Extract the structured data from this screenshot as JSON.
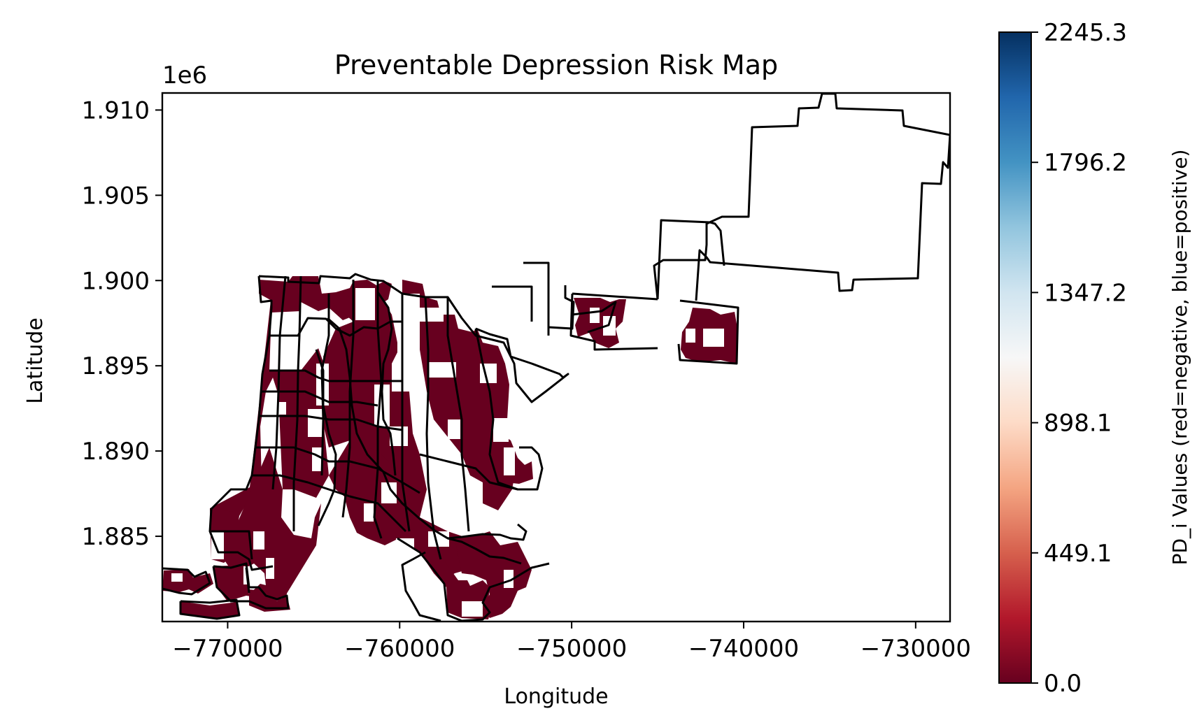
{
  "map": {
    "title": "Preventable Depression Risk Map",
    "xlabel": "Longitude",
    "ylabel": "Latitude",
    "y_offset_label": "1e6",
    "x_ticks": [
      {
        "value": -770000,
        "label": "−770000"
      },
      {
        "value": -760000,
        "label": "−760000"
      },
      {
        "value": -750000,
        "label": "−750000"
      },
      {
        "value": -740000,
        "label": "−740000"
      },
      {
        "value": -730000,
        "label": "−730000"
      }
    ],
    "y_ticks": [
      {
        "value": 1910000,
        "label": "1.910"
      },
      {
        "value": 1905000,
        "label": "1.905"
      },
      {
        "value": 1900000,
        "label": "1.900"
      },
      {
        "value": 1895000,
        "label": "1.895"
      },
      {
        "value": 1890000,
        "label": "1.890"
      },
      {
        "value": 1885000,
        "label": "1.885"
      }
    ]
  },
  "colorbar": {
    "label": "PD_i Values (red=negative, blue=positive)",
    "colormap": "RdBu",
    "range": [
      0.0,
      2245.3
    ],
    "ticks": [
      {
        "value": 0.0,
        "label": "0.0"
      },
      {
        "value": 449.1,
        "label": "449.1"
      },
      {
        "value": 898.1,
        "label": "898.1"
      },
      {
        "value": 1347.2,
        "label": "1347.2"
      },
      {
        "value": 1796.2,
        "label": "1796.2"
      },
      {
        "value": 2245.3,
        "label": "2245.3"
      }
    ],
    "stops": [
      "#67001f",
      "#b2182b",
      "#d6604d",
      "#f4a582",
      "#fddbc7",
      "#f7f7f7",
      "#d1e5f0",
      "#92c5de",
      "#4393c3",
      "#2166ac",
      "#053061"
    ]
  },
  "colors": {
    "fill_dominant": "#67001f",
    "boundary": "#000000"
  },
  "chart_data": {
    "type": "heatmap",
    "title": "Preventable Depression Risk Map",
    "xlabel": "Longitude",
    "ylabel": "Latitude",
    "xlim": [
      -773800,
      -728000
    ],
    "ylim": [
      1880000,
      1911000
    ],
    "y_scale_offset": "1e6",
    "value_range": [
      0.0,
      2245.3
    ],
    "colormap": "RdBu",
    "dominant_value": 0.0
  }
}
